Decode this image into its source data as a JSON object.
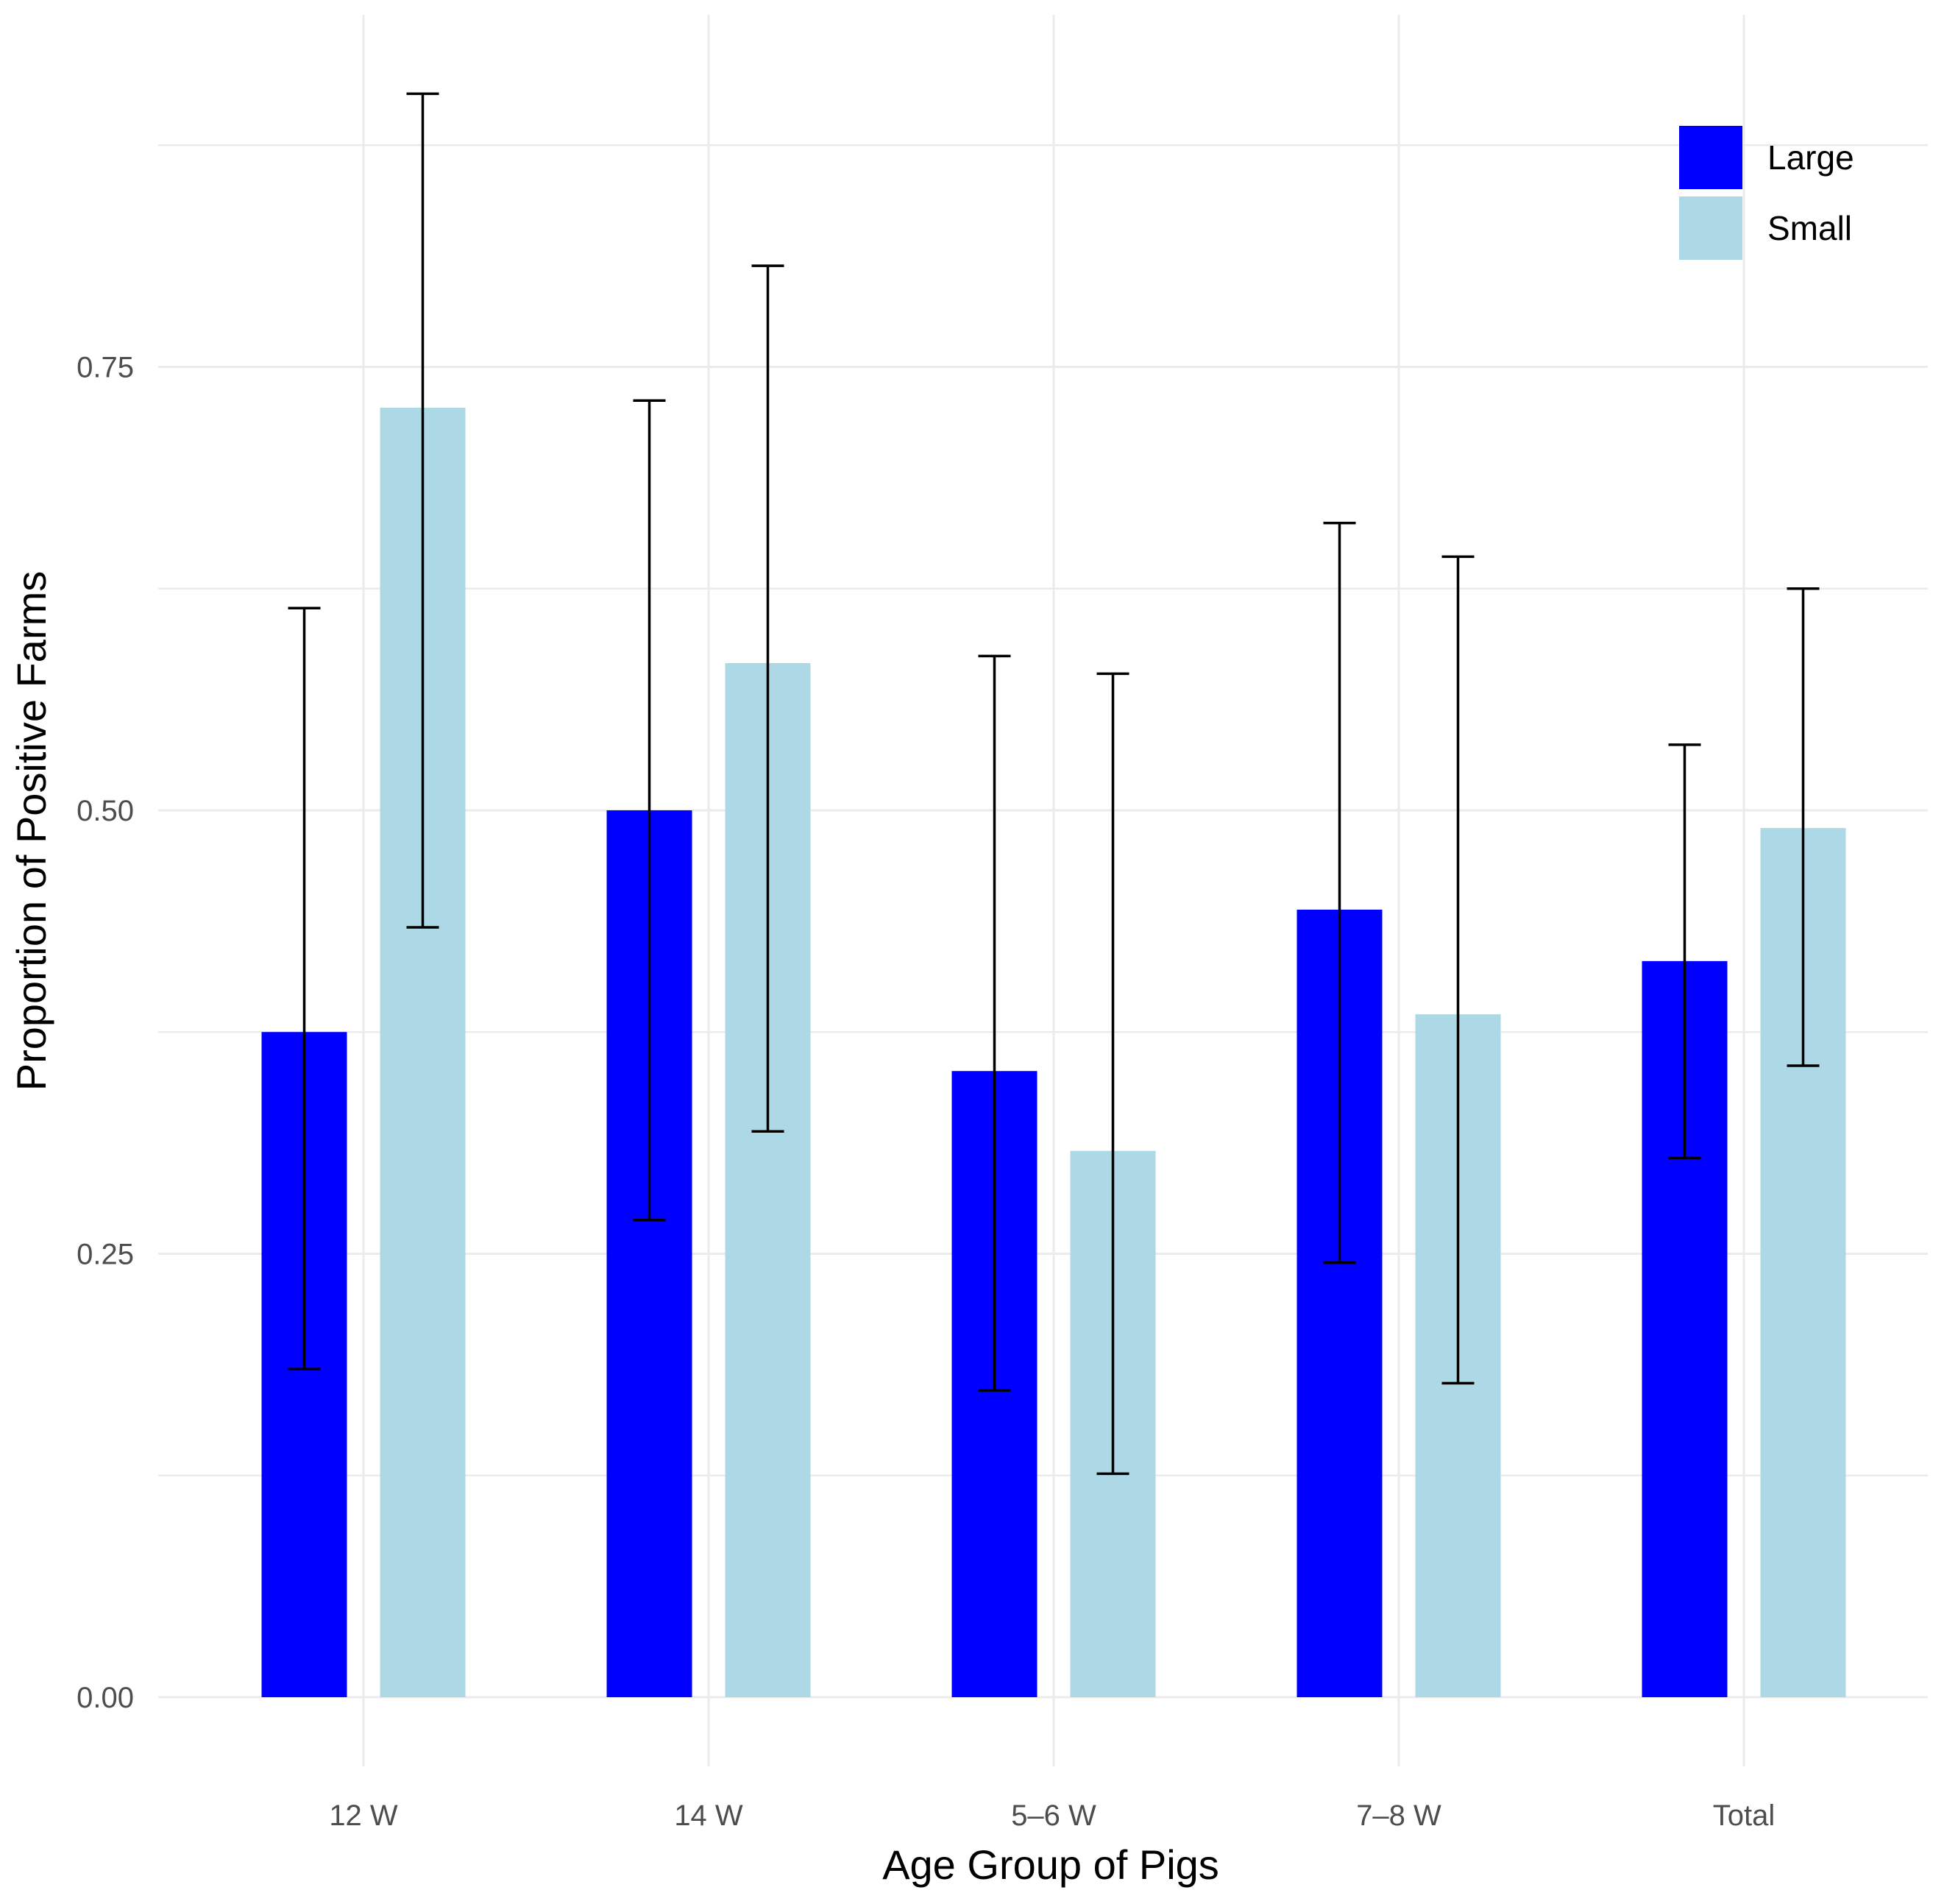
{
  "chart_data": {
    "type": "bar",
    "title": "",
    "xlabel": "Age Group of Pigs",
    "ylabel": "Proportion of Positive Farms",
    "categories": [
      "12 W",
      "14 W",
      "5–6 W",
      "7–8 W",
      "Total"
    ],
    "series": [
      {
        "name": "Large",
        "color": "#0000ff",
        "values": [
          0.375,
          0.5,
          0.353,
          0.444,
          0.415
        ],
        "error_lower": [
          0.185,
          0.269,
          0.173,
          0.245,
          0.304
        ],
        "error_upper": [
          0.614,
          0.731,
          0.587,
          0.662,
          0.537
        ]
      },
      {
        "name": "Small",
        "color": "#add8e6",
        "values": [
          0.727,
          0.583,
          0.308,
          0.385,
          0.49
        ],
        "error_lower": [
          0.434,
          0.319,
          0.126,
          0.177,
          0.356
        ],
        "error_upper": [
          0.904,
          0.807,
          0.577,
          0.643,
          0.625
        ]
      }
    ],
    "ylim": [
      -0.04,
      0.95
    ],
    "y_ticks": [
      0.0,
      0.25,
      0.5,
      0.75
    ],
    "y_tick_labels": [
      "0.00",
      "0.25",
      "0.50",
      "0.75"
    ],
    "y_minor_ticks": [
      0.125,
      0.375,
      0.625,
      0.875
    ],
    "grid": true,
    "legend": {
      "position": "top-right",
      "entries": [
        "Large",
        "Small"
      ]
    }
  }
}
